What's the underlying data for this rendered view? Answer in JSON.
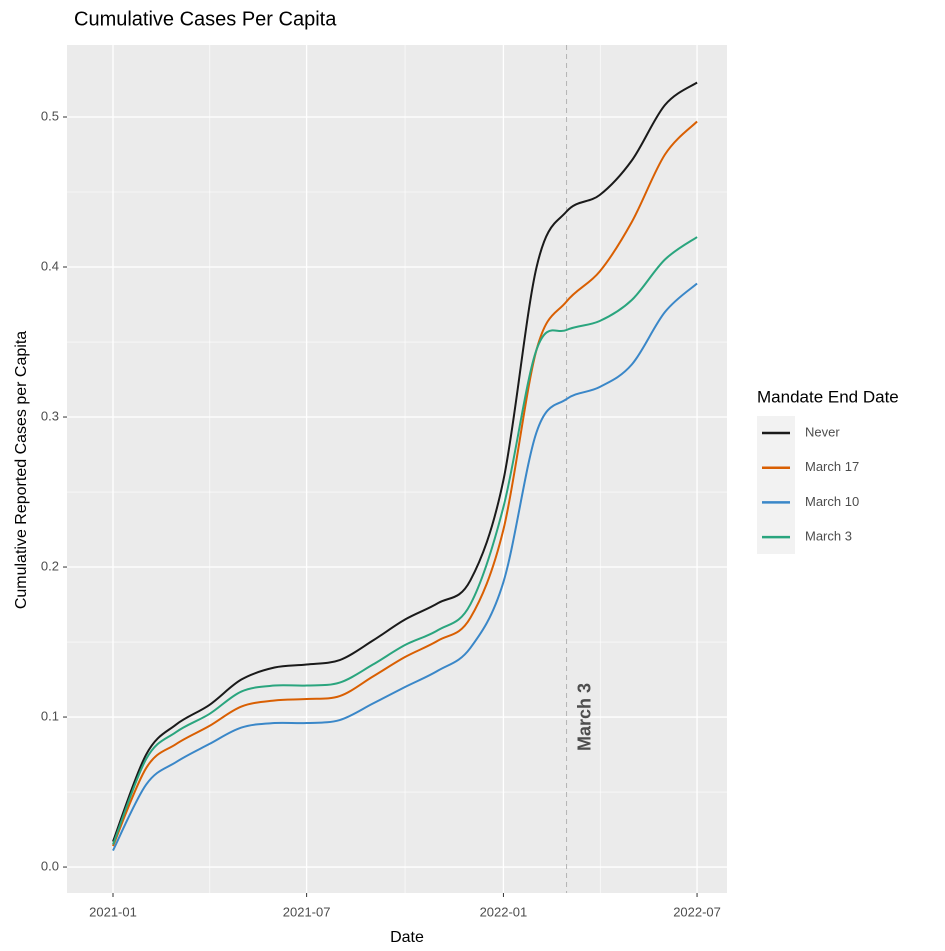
{
  "chart_data": {
    "type": "line",
    "title": "Cumulative Cases Per Capita",
    "x_label": "Date",
    "y_label": "Cumulative Reported Cases per Capita",
    "x": [
      "2021-01",
      "2021-02",
      "2021-03",
      "2021-04",
      "2021-05",
      "2021-06",
      "2021-07",
      "2021-08",
      "2021-09",
      "2021-10",
      "2021-11",
      "2021-12",
      "2022-01",
      "2022-02",
      "2022-03",
      "2022-04",
      "2022-05",
      "2022-06",
      "2022-07"
    ],
    "series": [
      {
        "name": "Never",
        "color": "#1a1a1a",
        "values": [
          0.017,
          0.075,
          0.095,
          0.108,
          0.125,
          0.133,
          0.135,
          0.138,
          0.151,
          0.165,
          0.176,
          0.191,
          0.258,
          0.4,
          0.437,
          0.448,
          0.471,
          0.508,
          0.523
        ]
      },
      {
        "name": "March 17",
        "color": "#d95f02",
        "values": [
          0.014,
          0.066,
          0.082,
          0.094,
          0.107,
          0.111,
          0.112,
          0.114,
          0.127,
          0.14,
          0.151,
          0.166,
          0.225,
          0.345,
          0.377,
          0.397,
          0.43,
          0.475,
          0.497
        ]
      },
      {
        "name": "March 10",
        "color": "#3a87c8",
        "values": [
          0.011,
          0.055,
          0.07,
          0.082,
          0.093,
          0.096,
          0.096,
          0.098,
          0.109,
          0.12,
          0.131,
          0.146,
          0.19,
          0.29,
          0.312,
          0.32,
          0.335,
          0.37,
          0.389
        ]
      },
      {
        "name": "March 3",
        "color": "#2aa57e",
        "values": [
          0.015,
          0.072,
          0.09,
          0.102,
          0.117,
          0.121,
          0.121,
          0.123,
          0.135,
          0.148,
          0.158,
          0.175,
          0.24,
          0.345,
          0.358,
          0.364,
          0.378,
          0.405,
          0.42
        ]
      }
    ],
    "legend_title": "Mandate End Date",
    "legend": "right",
    "xlim": [
      "2020-11-19",
      "2022-07-29"
    ],
    "xticks": [
      "2021-01",
      "2021-07",
      "2022-01",
      "2022-07"
    ],
    "ylim": [
      -0.0173,
      0.548
    ],
    "yticks": [
      {
        "value": 0,
        "label": "0.0"
      },
      0.1,
      0.2,
      0.3,
      0.4,
      0.5
    ],
    "grid": true,
    "vline": {
      "x": "2022-03",
      "label": "March 3",
      "color": "#ff2200"
    }
  }
}
